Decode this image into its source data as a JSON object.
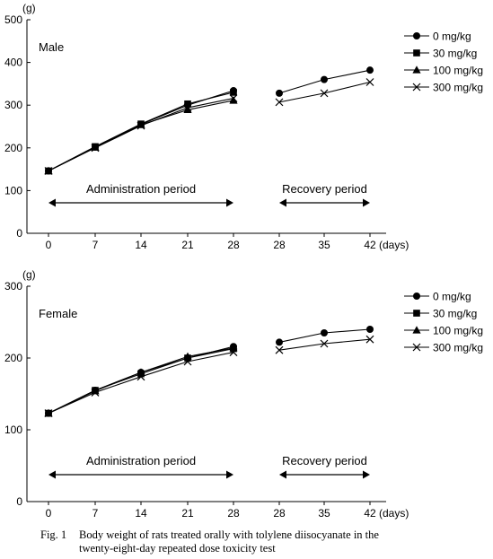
{
  "chart_data": [
    {
      "type": "line",
      "panel_label": "Male",
      "ylabel": "(g)",
      "xlabel": "(days)",
      "ylim": [
        0,
        500
      ],
      "yticks": [
        0,
        100,
        200,
        300,
        400,
        500
      ],
      "x_tick_labels": [
        "0",
        "7",
        "14",
        "21",
        "28",
        "28",
        "35",
        "42"
      ],
      "periods": [
        {
          "label": "Administration period",
          "from_index": 0,
          "to_index": 4
        },
        {
          "label": "Recovery period",
          "from_index": 5,
          "to_index": 7
        }
      ],
      "legend_position": "top-right",
      "series": [
        {
          "name": "0 mg/kg",
          "marker": "circle",
          "administration": [
            146,
            202,
            255,
            300,
            334
          ],
          "recovery": [
            328,
            360,
            382
          ]
        },
        {
          "name": "30 mg/kg",
          "marker": "square",
          "administration": [
            146,
            203,
            256,
            303,
            330
          ],
          "recovery": null
        },
        {
          "name": "100 mg/kg",
          "marker": "triangle",
          "administration": [
            146,
            201,
            254,
            289,
            311
          ],
          "recovery": null
        },
        {
          "name": "300 mg/kg",
          "marker": "cross",
          "administration": [
            146,
            200,
            252,
            294,
            316
          ],
          "recovery": [
            307,
            328,
            354
          ]
        }
      ]
    },
    {
      "type": "line",
      "panel_label": "Female",
      "ylabel": "(g)",
      "xlabel": "(days)",
      "ylim": [
        0,
        300
      ],
      "yticks": [
        0,
        100,
        200,
        300
      ],
      "x_tick_labels": [
        "0",
        "7",
        "14",
        "21",
        "28",
        "28",
        "35",
        "42"
      ],
      "periods": [
        {
          "label": "Administration period",
          "from_index": 0,
          "to_index": 4
        },
        {
          "label": "Recovery period",
          "from_index": 5,
          "to_index": 7
        }
      ],
      "legend_position": "top-right",
      "series": [
        {
          "name": "0 mg/kg",
          "marker": "circle",
          "administration": [
            123,
            155,
            180,
            200,
            216
          ],
          "recovery": [
            222,
            235,
            240
          ]
        },
        {
          "name": "30 mg/kg",
          "marker": "square",
          "administration": [
            123,
            155,
            178,
            200,
            213
          ],
          "recovery": null
        },
        {
          "name": "100 mg/kg",
          "marker": "triangle",
          "administration": [
            123,
            154,
            180,
            202,
            214
          ],
          "recovery": null
        },
        {
          "name": "300 mg/kg",
          "marker": "cross",
          "administration": [
            123,
            152,
            174,
            195,
            208
          ],
          "recovery": [
            211,
            220,
            226
          ]
        }
      ]
    }
  ],
  "caption": {
    "label": "Fig. 1",
    "line1": "Body weight of rats treated orally with tolylene diisocyanate in the",
    "line2": "twenty-eight-day repeated dose toxicity test"
  }
}
